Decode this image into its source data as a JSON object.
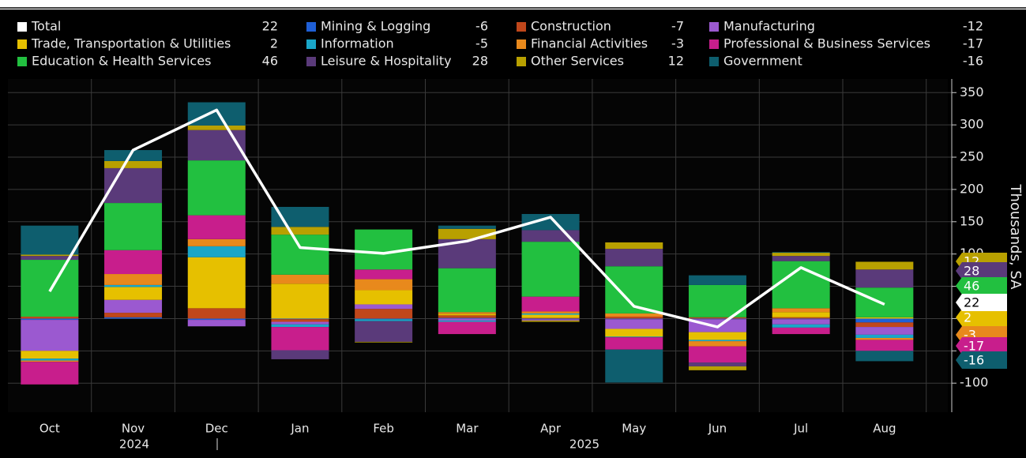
{
  "chart_data": {
    "type": "stacked-bar-line",
    "categories": [
      "Oct",
      "Nov",
      "Dec",
      "Jan",
      "Feb",
      "Mar",
      "Apr",
      "May",
      "Jun",
      "Jul",
      "Aug"
    ],
    "year_labels": [
      "2024",
      "2025"
    ],
    "y_axis_label": "Thousands, SA",
    "ylim": [
      -145,
      365
    ],
    "yticks": [
      -100,
      -50,
      0,
      50,
      100,
      150,
      200,
      250,
      300,
      350
    ],
    "grid": true,
    "line_series": {
      "name": "Total",
      "color": "#ffffff",
      "values": [
        42,
        261,
        323,
        110,
        101,
        120,
        157,
        19,
        -13,
        79,
        22
      ]
    },
    "series": [
      {
        "name": "Mining & Logging",
        "color": "#1f5fd6",
        "values": [
          -2,
          2,
          -2,
          -1,
          -1,
          1,
          -1,
          -1,
          -1,
          -1,
          -6
        ]
      },
      {
        "name": "Construction",
        "color": "#c0471b",
        "values": [
          3,
          7,
          16,
          -4,
          15,
          4,
          1,
          3,
          2,
          2,
          -7
        ]
      },
      {
        "name": "Manufacturing",
        "color": "#9b59d0",
        "values": [
          -48,
          20,
          -10,
          -4,
          7,
          -3,
          -2,
          -15,
          -20,
          -8,
          -12
        ]
      },
      {
        "name": "Trade, Transportation & Utilities",
        "color": "#e6c000",
        "values": [
          -12,
          20,
          79,
          54,
          22,
          2,
          5,
          -12,
          -12,
          8,
          2
        ]
      },
      {
        "name": "Information",
        "color": "#1aa6c8",
        "values": [
          -3,
          3,
          17,
          -4,
          -3,
          -2,
          2,
          -1,
          -2,
          -5,
          -5
        ]
      },
      {
        "name": "Financial Activities",
        "color": "#e8891c",
        "values": [
          -2,
          17,
          11,
          14,
          17,
          3,
          3,
          5,
          -8,
          6,
          -3
        ]
      },
      {
        "name": "Professional & Business Services",
        "color": "#c81e8c",
        "values": [
          -35,
          37,
          37,
          -36,
          15,
          -19,
          23,
          -19,
          -25,
          -10,
          -17
        ]
      },
      {
        "name": "Education & Health Services",
        "color": "#22c040",
        "values": [
          88,
          73,
          85,
          62,
          62,
          68,
          85,
          73,
          50,
          73,
          46
        ]
      },
      {
        "name": "Leisure & Hospitality",
        "color": "#5a3a7a",
        "values": [
          6,
          54,
          47,
          -14,
          -32,
          45,
          18,
          27,
          -6,
          8,
          28
        ]
      },
      {
        "name": "Other Services",
        "color": "#b8a000",
        "values": [
          2,
          11,
          7,
          12,
          -1,
          16,
          -2,
          10,
          -6,
          5,
          12
        ]
      },
      {
        "name": "Government",
        "color": "#0e5e6e",
        "values": [
          45,
          17,
          36,
          31,
          0,
          5,
          25,
          -51,
          15,
          1,
          -16
        ]
      }
    ]
  }
}
